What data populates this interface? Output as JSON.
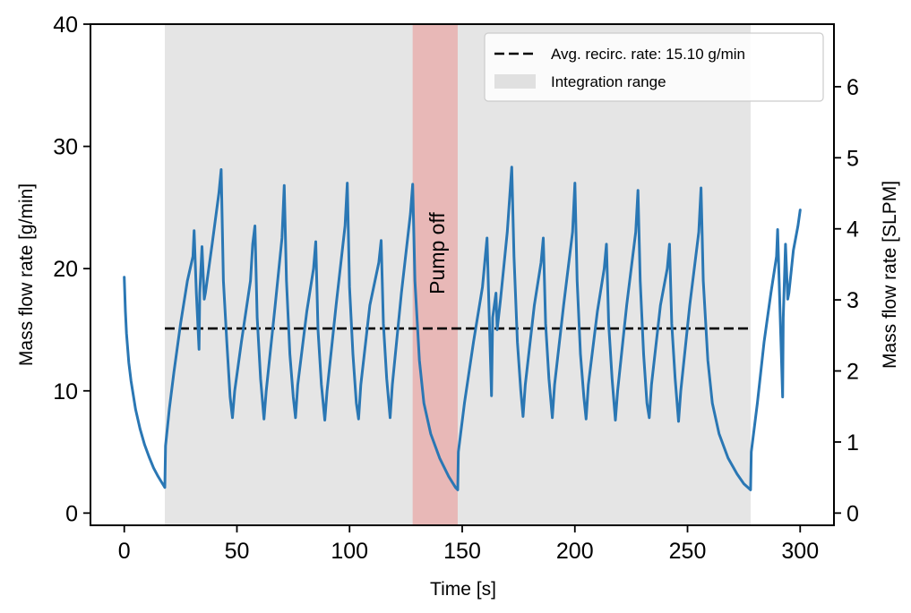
{
  "chart_data": {
    "type": "line",
    "xlabel": "Time [s]",
    "ylabel": "Mass flow rate [g/min]",
    "ylabel_right": "Mass flow rate [SLPM]",
    "xlim": [
      -15,
      315
    ],
    "ylim": [
      -1,
      40
    ],
    "ylim_right": [
      -0.172,
      6.88
    ],
    "x_ticks": [
      0,
      50,
      100,
      150,
      200,
      250,
      300
    ],
    "y_ticks": [
      0,
      10,
      20,
      30,
      40
    ],
    "y_ticks_right": [
      0,
      1,
      2,
      3,
      4,
      5,
      6
    ],
    "grid": false,
    "legend_position": "top-right",
    "integration_range": [
      18,
      278
    ],
    "pump_off_range": [
      128,
      148
    ],
    "average_rate": 15.1,
    "annotation": "Pump off",
    "legend": [
      {
        "type": "dashed-line",
        "label": "Avg. recirc. rate: 15.10 g/min"
      },
      {
        "type": "patch",
        "label": "Integration range"
      }
    ],
    "series": [
      {
        "name": "Mass flow rate",
        "color": "#2a77b4",
        "points": [
          [
            0,
            19.3
          ],
          [
            0.5,
            16.5
          ],
          [
            1,
            14.7
          ],
          [
            2,
            12.3
          ],
          [
            3,
            10.8
          ],
          [
            5,
            8.5
          ],
          [
            7,
            6.9
          ],
          [
            9,
            5.6
          ],
          [
            11,
            4.6
          ],
          [
            13,
            3.7
          ],
          [
            15,
            3.0
          ],
          [
            17,
            2.4
          ],
          [
            18,
            2.1
          ],
          [
            18.3,
            5.5
          ],
          [
            20,
            8.5
          ],
          [
            22,
            11.5
          ],
          [
            25,
            15.5
          ],
          [
            28,
            19.0
          ],
          [
            30.5,
            21.0
          ],
          [
            31,
            23.1
          ],
          [
            32,
            18.0
          ],
          [
            33.2,
            13.4
          ],
          [
            33.5,
            18.0
          ],
          [
            34.5,
            21.8
          ],
          [
            35.5,
            17.5
          ],
          [
            36,
            18.0
          ],
          [
            39,
            22.0
          ],
          [
            42,
            26.2
          ],
          [
            43,
            28.1
          ],
          [
            44,
            19.0
          ],
          [
            45.5,
            14.0
          ],
          [
            47,
            9.5
          ],
          [
            48,
            7.8
          ],
          [
            49,
            10.0
          ],
          [
            52,
            14.0
          ],
          [
            56,
            19.0
          ],
          [
            57,
            22.0
          ],
          [
            58,
            23.5
          ],
          [
            59,
            16.0
          ],
          [
            60.5,
            11.0
          ],
          [
            62,
            7.7
          ],
          [
            63,
            10.0
          ],
          [
            67,
            17.0
          ],
          [
            70,
            22.5
          ],
          [
            71,
            26.8
          ],
          [
            72,
            19.0
          ],
          [
            73.5,
            13.0
          ],
          [
            75,
            9.5
          ],
          [
            76,
            7.8
          ],
          [
            77,
            10.5
          ],
          [
            81,
            16.5
          ],
          [
            84,
            20.0
          ],
          [
            85,
            22.2
          ],
          [
            86,
            15.0
          ],
          [
            87.5,
            10.5
          ],
          [
            89,
            7.6
          ],
          [
            90,
            10.0
          ],
          [
            94,
            17.0
          ],
          [
            98,
            23.5
          ],
          [
            99,
            27.0
          ],
          [
            100,
            18.5
          ],
          [
            101.5,
            13.0
          ],
          [
            103,
            9.0
          ],
          [
            104,
            7.7
          ],
          [
            105,
            10.5
          ],
          [
            109,
            17.0
          ],
          [
            113,
            20.5
          ],
          [
            114,
            22.3
          ],
          [
            115,
            15.5
          ],
          [
            116.5,
            11.0
          ],
          [
            118,
            7.8
          ],
          [
            119,
            10.5
          ],
          [
            123,
            18.0
          ],
          [
            127,
            24.5
          ],
          [
            128,
            26.9
          ],
          [
            129,
            19.0
          ],
          [
            131,
            12.5
          ],
          [
            133,
            9.0
          ],
          [
            136,
            6.5
          ],
          [
            140,
            4.5
          ],
          [
            144,
            3.0
          ],
          [
            147,
            2.1
          ],
          [
            148,
            1.9
          ],
          [
            148.3,
            5.0
          ],
          [
            151,
            9.0
          ],
          [
            155,
            14.0
          ],
          [
            159,
            18.5
          ],
          [
            161,
            22.5
          ],
          [
            162,
            16.0
          ],
          [
            163,
            9.6
          ],
          [
            163.5,
            16.0
          ],
          [
            165,
            18.0
          ],
          [
            165.5,
            15.0
          ],
          [
            167,
            17.5
          ],
          [
            170,
            23.0
          ],
          [
            172,
            28.3
          ],
          [
            173,
            21.0
          ],
          [
            174.5,
            14.0
          ],
          [
            176,
            10.0
          ],
          [
            177,
            7.9
          ],
          [
            178,
            10.5
          ],
          [
            182,
            17.0
          ],
          [
            185,
            20.5
          ],
          [
            186,
            22.5
          ],
          [
            187,
            15.5
          ],
          [
            188.5,
            11.0
          ],
          [
            190,
            7.8
          ],
          [
            191,
            10.5
          ],
          [
            195,
            17.0
          ],
          [
            199,
            23.0
          ],
          [
            200,
            27.0
          ],
          [
            201,
            19.0
          ],
          [
            202.5,
            13.0
          ],
          [
            204,
            9.5
          ],
          [
            205,
            7.7
          ],
          [
            206,
            10.5
          ],
          [
            210,
            16.5
          ],
          [
            213,
            20.0
          ],
          [
            214,
            22.0
          ],
          [
            215,
            15.5
          ],
          [
            216.5,
            11.0
          ],
          [
            218,
            7.6
          ],
          [
            219,
            10.0
          ],
          [
            223,
            17.0
          ],
          [
            227,
            23.0
          ],
          [
            228,
            26.4
          ],
          [
            229,
            19.0
          ],
          [
            230.5,
            13.0
          ],
          [
            232,
            9.0
          ],
          [
            233,
            7.8
          ],
          [
            234,
            10.5
          ],
          [
            238,
            17.0
          ],
          [
            241,
            20.0
          ],
          [
            242,
            22.0
          ],
          [
            243,
            15.5
          ],
          [
            244.5,
            11.0
          ],
          [
            246,
            7.5
          ],
          [
            247,
            10.0
          ],
          [
            251,
            17.0
          ],
          [
            255,
            23.0
          ],
          [
            256,
            26.6
          ],
          [
            257,
            19.0
          ],
          [
            259,
            12.5
          ],
          [
            261,
            9.0
          ],
          [
            264,
            6.5
          ],
          [
            268,
            4.5
          ],
          [
            272,
            3.2
          ],
          [
            275,
            2.4
          ],
          [
            278,
            1.9
          ],
          [
            278.3,
            5.0
          ],
          [
            281,
            9.0
          ],
          [
            284,
            14.0
          ],
          [
            287,
            18.0
          ],
          [
            289.5,
            21.0
          ],
          [
            290,
            23.2
          ],
          [
            291,
            17.0
          ],
          [
            292.2,
            9.5
          ],
          [
            292.5,
            16.0
          ],
          [
            293.5,
            22.0
          ],
          [
            294.5,
            17.5
          ],
          [
            295,
            18.0
          ],
          [
            297,
            21.5
          ],
          [
            299,
            23.5
          ],
          [
            300,
            24.8
          ]
        ]
      }
    ]
  }
}
